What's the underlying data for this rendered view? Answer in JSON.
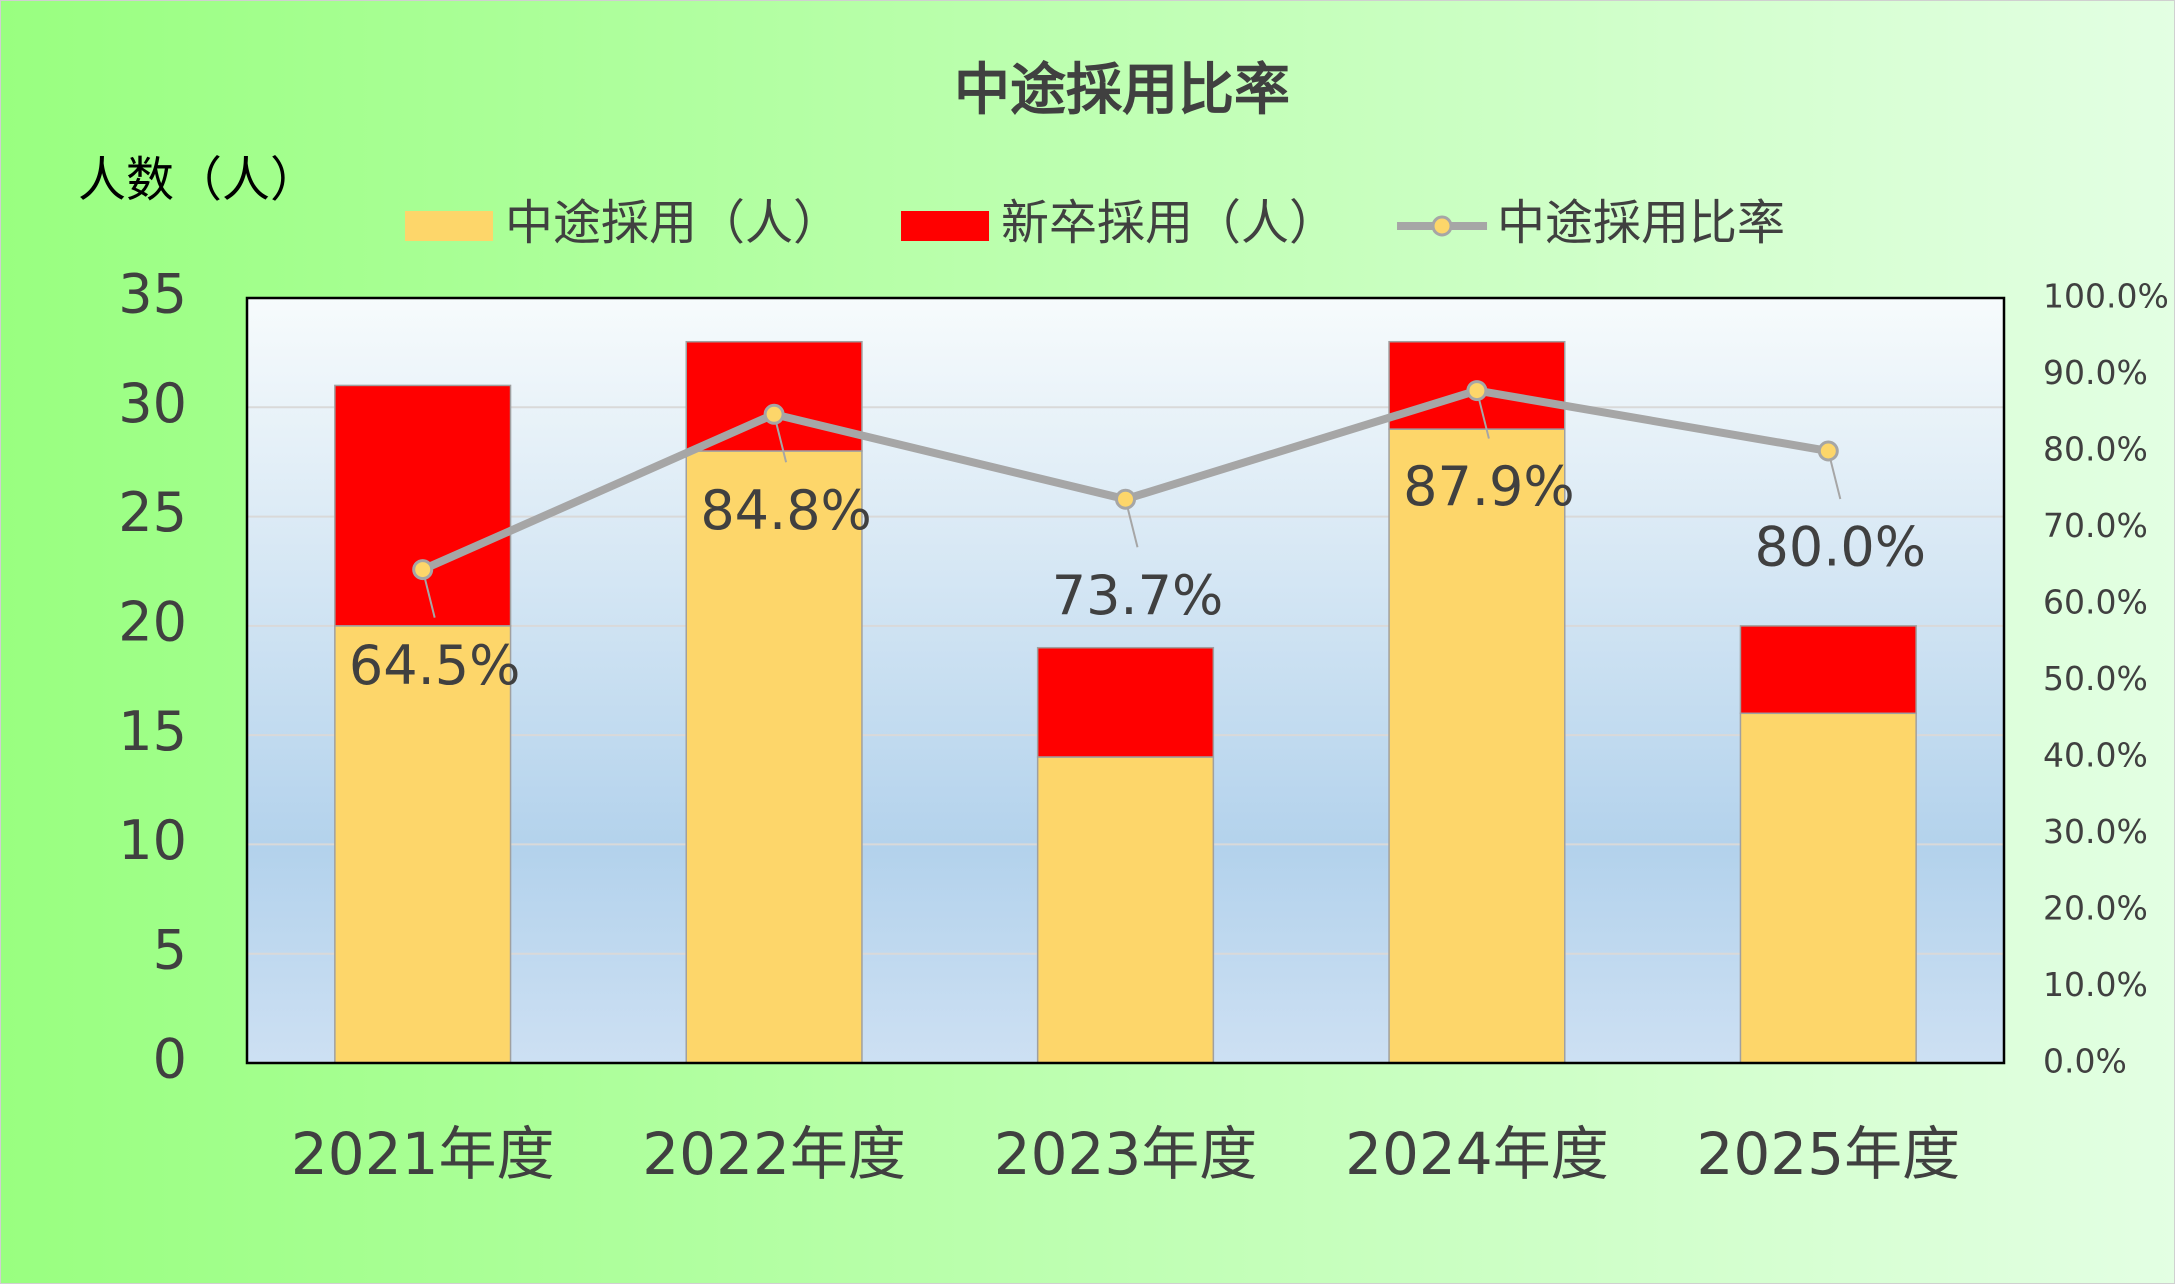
{
  "chart_data": {
    "type": "bar",
    "stacked": true,
    "title": "中途採用比率",
    "y_label": "人数（人）",
    "categories": [
      "2021年度",
      "2022年度",
      "2023年度",
      "2024年度",
      "2025年度"
    ],
    "series": [
      {
        "name": "中途採用（人）",
        "type": "bar",
        "color": "#fdd66a",
        "values": [
          20,
          28,
          14,
          29,
          16
        ]
      },
      {
        "name": "新卒採用（人）",
        "type": "bar",
        "color": "#ff0000",
        "values": [
          11,
          5,
          5,
          4,
          4
        ]
      },
      {
        "name": "中途採用比率",
        "type": "line",
        "axis": "y2",
        "color": "#a6a6a6",
        "marker_color": "#fdd66a",
        "values": [
          64.5,
          84.8,
          73.7,
          87.9,
          80.0
        ],
        "value_labels": [
          "64.5%",
          "84.8%",
          "73.7%",
          "87.9%",
          "80.0%"
        ]
      }
    ],
    "ylim": [
      0,
      35
    ],
    "yticks": [
      0,
      5,
      10,
      15,
      20,
      25,
      30,
      35
    ],
    "y2lim": [
      0,
      100
    ],
    "y2ticks": [
      {
        "value": 0,
        "label": "0.0%"
      },
      {
        "value": 10,
        "label": "10.0%"
      },
      {
        "value": 20,
        "label": "20.0%"
      },
      {
        "value": 30,
        "label": "30.0%"
      },
      {
        "value": 40,
        "label": "40.0%"
      },
      {
        "value": 50,
        "label": "50.0%"
      },
      {
        "value": 60,
        "label": "60.0%"
      },
      {
        "value": 70,
        "label": "70.0%"
      },
      {
        "value": 80,
        "label": "80.0%"
      },
      {
        "value": 90,
        "label": "90.0%"
      },
      {
        "value": 100,
        "label": "100.0%"
      }
    ],
    "grid": true
  }
}
